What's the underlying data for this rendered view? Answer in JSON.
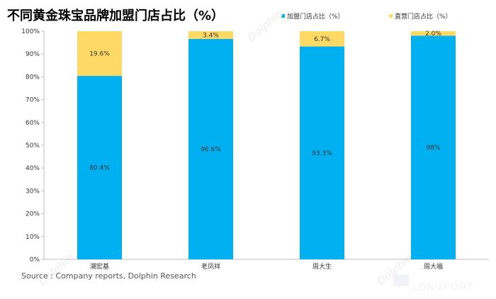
{
  "chart_data": {
    "type": "bar",
    "stacked": true,
    "title": "不同黄金珠宝品牌加盟门店占比（%）",
    "categories": [
      "潮宏基",
      "老凤祥",
      "周大生",
      "周大福"
    ],
    "series": [
      {
        "name": "加盟门店占比（%）",
        "color": "#00b0f0",
        "values": [
          80.4,
          96.6,
          93.3,
          98
        ],
        "labels": [
          "80.4%",
          "96.6%",
          "93.3%",
          "98%"
        ]
      },
      {
        "name": "直营门店占比（%）",
        "color": "#ffd966",
        "values": [
          19.6,
          3.4,
          6.7,
          2.0
        ],
        "labels": [
          "19.6%",
          "3.4%",
          "6.7%",
          "2.0%"
        ]
      }
    ],
    "ylim": [
      0,
      100
    ],
    "yticks": [
      "0%",
      "10%",
      "20%",
      "30%",
      "40%",
      "50%",
      "60%",
      "70%",
      "80%",
      "90%",
      "100%"
    ],
    "legend_position": "top-right",
    "source": "Source : Company reports, Dolphin Research"
  },
  "watermark": {
    "brand": "LONGPORT",
    "mark": "Dolphin"
  }
}
